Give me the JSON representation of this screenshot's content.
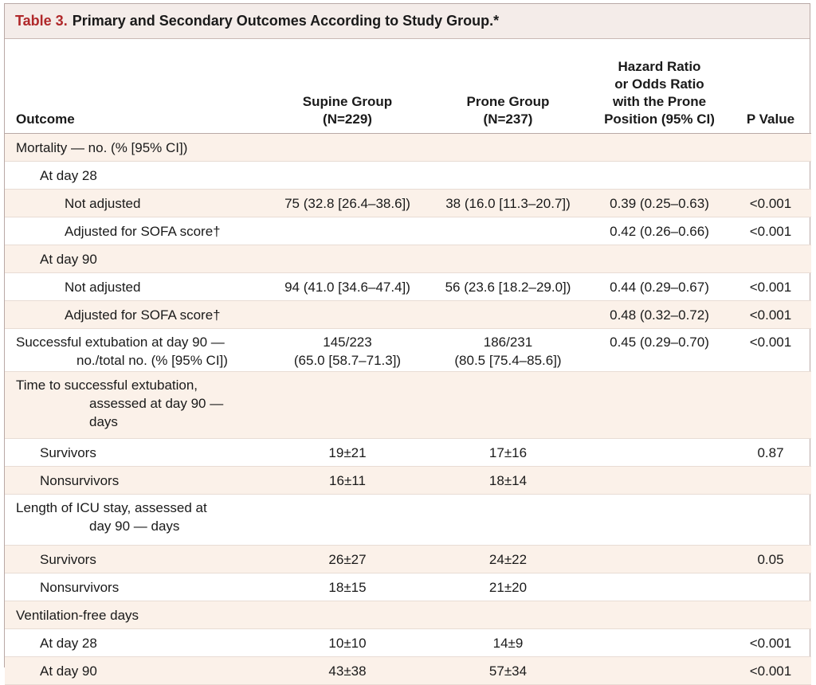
{
  "title": {
    "number": "Table 3.",
    "text": "Primary and Secondary Outcomes According to Study Group.*"
  },
  "columns": {
    "outcome": "Outcome",
    "supine": [
      "Supine Group",
      "(N=229)"
    ],
    "prone": [
      "Prone Group",
      "(N=237)"
    ],
    "hazard": [
      "Hazard Ratio",
      "or Odds Ratio",
      "with the Prone",
      "Position (95% CI)"
    ],
    "pvalue": "P Value"
  },
  "rows": [
    {
      "label": "Mortality — no. (% [95% CI])",
      "supine": "",
      "prone": "",
      "ratio": "",
      "p": ""
    },
    {
      "label": "At day 28",
      "supine": "",
      "prone": "",
      "ratio": "",
      "p": ""
    },
    {
      "label": "Not adjusted",
      "supine": "75 (32.8 [26.4–38.6])",
      "prone": "38 (16.0 [11.3–20.7])",
      "ratio": "0.39 (0.25–0.63)",
      "p": "<0.001"
    },
    {
      "label": "Adjusted for SOFA score†",
      "supine": "",
      "prone": "",
      "ratio": "0.42 (0.26–0.66)",
      "p": "<0.001"
    },
    {
      "label": "At day 90",
      "supine": "",
      "prone": "",
      "ratio": "",
      "p": ""
    },
    {
      "label": "Not adjusted",
      "supine": "94 (41.0 [34.6–47.4])",
      "prone": "56 (23.6 [18.2–29.0])",
      "ratio": "0.44 (0.29–0.67)",
      "p": "<0.001"
    },
    {
      "label": "Adjusted for SOFA score†",
      "supine": "",
      "prone": "",
      "ratio": "0.48 (0.32–0.72)",
      "p": "<0.001"
    },
    {
      "label": [
        "Successful extubation at day 90 —",
        "no./total no. (% [95% CI])"
      ],
      "supine": [
        "145/223",
        "(65.0 [58.7–71.3])"
      ],
      "prone": [
        "186/231",
        "(80.5 [75.4–85.6])"
      ],
      "ratio": "0.45 (0.29–0.70)",
      "p": "<0.001"
    },
    {
      "label": [
        "Time to successful extubation,",
        "assessed at day 90 —",
        "days"
      ],
      "supine": "",
      "prone": "",
      "ratio": "",
      "p": ""
    },
    {
      "label": "Survivors",
      "supine": "19±21",
      "prone": "17±16",
      "ratio": "",
      "p": "0.87"
    },
    {
      "label": "Nonsurvivors",
      "supine": "16±11",
      "prone": "18±14",
      "ratio": "",
      "p": ""
    },
    {
      "label": [
        "Length of ICU stay, assessed at",
        "day 90 — days"
      ],
      "supine": "",
      "prone": "",
      "ratio": "",
      "p": ""
    },
    {
      "label": "Survivors",
      "supine": "26±27",
      "prone": "24±22",
      "ratio": "",
      "p": "0.05"
    },
    {
      "label": "Nonsurvivors",
      "supine": "18±15",
      "prone": "21±20",
      "ratio": "",
      "p": ""
    },
    {
      "label": "Ventilation-free days",
      "supine": "",
      "prone": "",
      "ratio": "",
      "p": ""
    },
    {
      "label": "At day 28",
      "supine": "10±10",
      "prone": "14±9",
      "ratio": "",
      "p": "<0.001"
    },
    {
      "label": "At day 90",
      "supine": "43±38",
      "prone": "57±34",
      "ratio": "",
      "p": "<0.001"
    }
  ]
}
